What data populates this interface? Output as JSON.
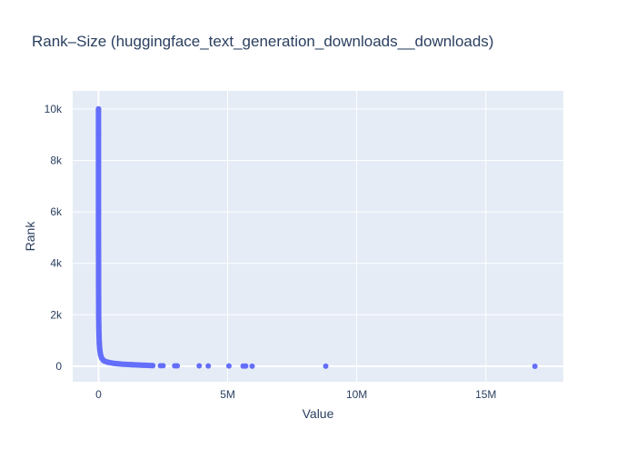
{
  "chart_data": {
    "type": "scatter",
    "title": "Rank–Size (huggingface_text_generation_downloads__downloads)",
    "xlabel": "Value",
    "ylabel": "Rank",
    "xlim": [
      -1000000,
      18000000
    ],
    "ylim": [
      -600,
      10700
    ],
    "x_ticks": [
      {
        "value": 0,
        "label": "0"
      },
      {
        "value": 5000000,
        "label": "5M"
      },
      {
        "value": 10000000,
        "label": "10M"
      },
      {
        "value": 15000000,
        "label": "15M"
      }
    ],
    "y_ticks": [
      {
        "value": 0,
        "label": "0"
      },
      {
        "value": 2000,
        "label": "2k"
      },
      {
        "value": 4000,
        "label": "4k"
      },
      {
        "value": 6000,
        "label": "6k"
      },
      {
        "value": 8000,
        "label": "8k"
      },
      {
        "value": 10000,
        "label": "10k"
      }
    ],
    "grid": true,
    "colors": {
      "marker": "#636efa",
      "plot_bg": "#e5ecf6",
      "grid": "#ffffff",
      "text": "#2a3f5f"
    },
    "curve": [
      {
        "x": 0,
        "y": 10000
      },
      {
        "x": 0,
        "y": 9000
      },
      {
        "x": 0,
        "y": 8000
      },
      {
        "x": 0,
        "y": 7000
      },
      {
        "x": 0,
        "y": 6000
      },
      {
        "x": 1000,
        "y": 5000
      },
      {
        "x": 2000,
        "y": 4000
      },
      {
        "x": 3000,
        "y": 3000
      },
      {
        "x": 5000,
        "y": 2500
      },
      {
        "x": 8000,
        "y": 2000
      },
      {
        "x": 12000,
        "y": 1500
      },
      {
        "x": 20000,
        "y": 1200
      },
      {
        "x": 30000,
        "y": 900
      },
      {
        "x": 50000,
        "y": 650
      },
      {
        "x": 80000,
        "y": 450
      },
      {
        "x": 120000,
        "y": 320
      },
      {
        "x": 200000,
        "y": 220
      },
      {
        "x": 350000,
        "y": 160
      },
      {
        "x": 600000,
        "y": 115
      },
      {
        "x": 900000,
        "y": 85
      },
      {
        "x": 1300000,
        "y": 60
      },
      {
        "x": 1700000,
        "y": 42
      },
      {
        "x": 2100000,
        "y": 28
      }
    ],
    "points": [
      {
        "x": 2400000,
        "y": 24
      },
      {
        "x": 2500000,
        "y": 22
      },
      {
        "x": 2950000,
        "y": 20
      },
      {
        "x": 3050000,
        "y": 18
      },
      {
        "x": 3900000,
        "y": 16
      },
      {
        "x": 4250000,
        "y": 14
      },
      {
        "x": 5050000,
        "y": 12
      },
      {
        "x": 5600000,
        "y": 10
      },
      {
        "x": 5700000,
        "y": 8
      },
      {
        "x": 5950000,
        "y": 6
      },
      {
        "x": 8800000,
        "y": 4
      },
      {
        "x": 16900000,
        "y": 2
      }
    ]
  }
}
